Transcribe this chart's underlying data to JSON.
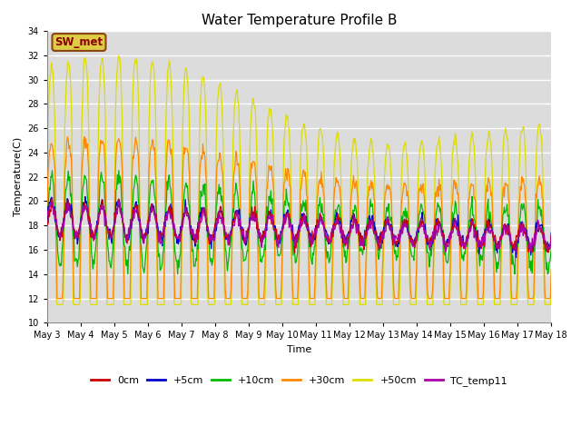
{
  "title": "Water Temperature Profile B",
  "xlabel": "Time",
  "ylabel": "Temperature(C)",
  "ylim": [
    10,
    34
  ],
  "yticks": [
    10,
    12,
    14,
    16,
    18,
    20,
    22,
    24,
    26,
    28,
    30,
    32,
    34
  ],
  "annotation": "SW_met",
  "annotation_color": "#8B0000",
  "annotation_bg": "#DDCC44",
  "annotation_edge": "#8B4513",
  "bg_color": "#E8E8E8",
  "plot_bg": "#DCDCDC",
  "series_colors": {
    "0cm": "#CC0000",
    "+5cm": "#0000CC",
    "+10cm": "#00BB00",
    "+30cm": "#FF8800",
    "+50cm": "#DDDD00",
    "TC_temp11": "#AA00AA"
  },
  "n_points": 720,
  "x_start": 3,
  "x_end": 18,
  "xtick_positions": [
    3,
    4,
    5,
    6,
    7,
    8,
    9,
    10,
    11,
    12,
    13,
    14,
    15,
    16,
    17,
    18
  ],
  "xtick_labels": [
    "May 3",
    "May 4",
    "May 5",
    "May 6",
    "May 7",
    "May 8",
    "May 9",
    "May 10",
    "May 11",
    "May 12",
    "May 13",
    "May 14",
    "May 15",
    "May 16",
    "May 17",
    "May 18"
  ]
}
